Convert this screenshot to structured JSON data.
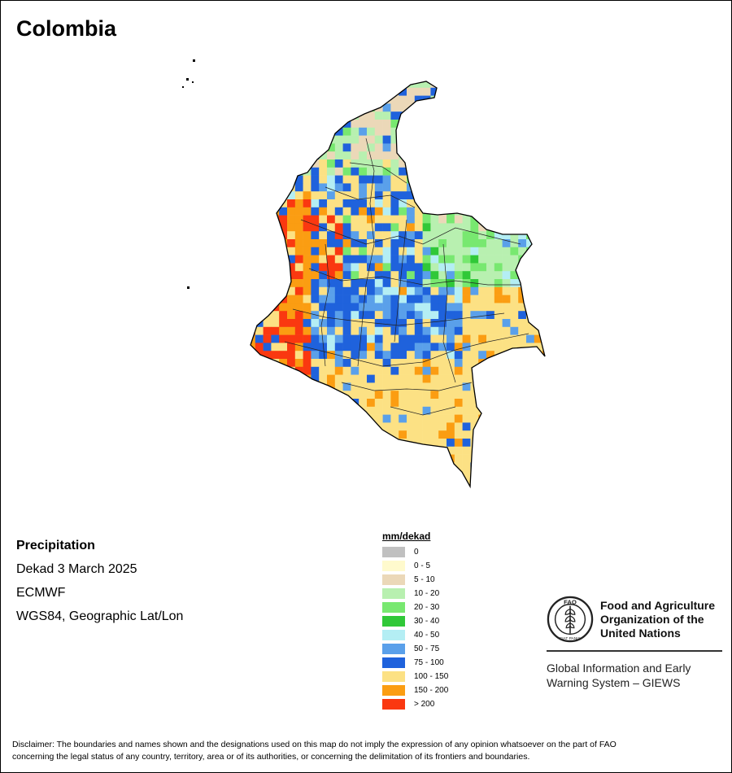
{
  "title": "Colombia",
  "info": {
    "variable": "Precipitation",
    "period": "Dekad 3 March 2025",
    "source": "ECMWF",
    "projection": "WGS84, Geographic Lat/Lon"
  },
  "legend": {
    "title": "mm/dekad",
    "items": [
      {
        "label": "0",
        "color": "#c0c0c0"
      },
      {
        "label": "0 - 5",
        "color": "#fffacd"
      },
      {
        "label": "5 - 10",
        "color": "#ebd8b8"
      },
      {
        "label": "10 - 20",
        "color": "#b8f0b0"
      },
      {
        "label": "20 - 30",
        "color": "#78e870"
      },
      {
        "label": "30 - 40",
        "color": "#30c838"
      },
      {
        "label": "40 - 50",
        "color": "#b4eef4"
      },
      {
        "label": "50 - 75",
        "color": "#5aa0ea"
      },
      {
        "label": "75 - 100",
        "color": "#1f62dc"
      },
      {
        "label": "100 - 150",
        "color": "#fce184"
      },
      {
        "label": "150 - 200",
        "color": "#fb9d12"
      },
      {
        "label": "> 200",
        "color": "#fa3810"
      }
    ]
  },
  "fao": {
    "name_line1": "Food and Agriculture",
    "name_line2": "Organization of the",
    "name_line3": "United Nations",
    "logo_letters": "FAO",
    "logo_motto": "FIAT PANIS",
    "system_line1": "Global Information and Early",
    "system_line2": "Warning System – GIEWS"
  },
  "disclaimer_line1": "Disclaimer: The boundaries and names shown and the designations used on this map do not imply the expression of any opinion whatsoever on the part of FAO",
  "disclaimer_line2": "concerning the legal status of any country, territory, area or of its authorities, or concerning the delimitation of its frontiers and boundaries."
}
